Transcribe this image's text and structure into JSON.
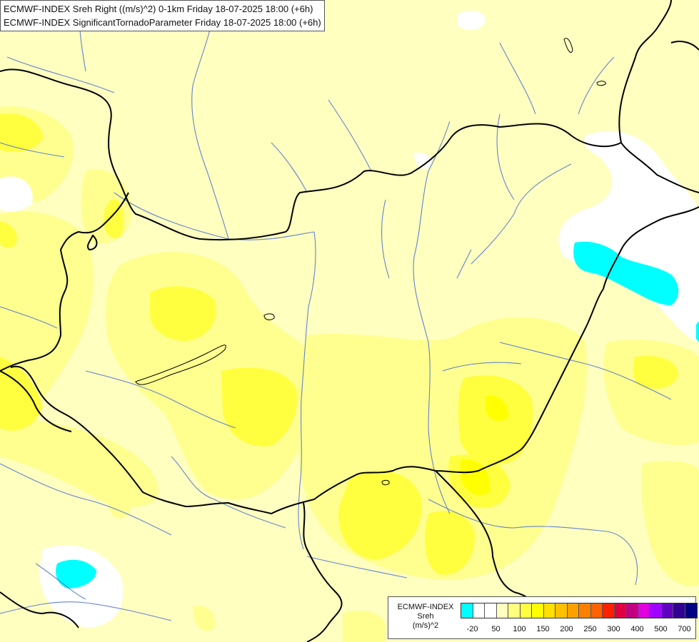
{
  "header": {
    "line1": "ECMWF-INDEX Sreh Right ((m/s)^2) 0-1km Friday 18-07-2025 18:00 (+6h)",
    "line2": "ECMWF-INDEX SignificantTornadoParameter Friday 18-07-2025 18:00 (+6h)"
  },
  "legend": {
    "title1": "ECMWF-INDEX",
    "title2": "Sreh",
    "unit": "(m/s)^2",
    "colors": [
      "#00ffff",
      "#ffffff",
      "#ffffff",
      "#ffffc0",
      "#ffff80",
      "#ffff40",
      "#ffff00",
      "#ffe000",
      "#ffc000",
      "#ffa000",
      "#ff8000",
      "#ff6000",
      "#ff2000",
      "#e00040",
      "#c00080",
      "#e000e0",
      "#a000ff",
      "#6000c0",
      "#300090",
      "#000080"
    ],
    "ticks": [
      {
        "label": "-20",
        "pos": 1
      },
      {
        "label": "50",
        "pos": 3
      },
      {
        "label": "100",
        "pos": 5
      },
      {
        "label": "150",
        "pos": 7
      },
      {
        "label": "200",
        "pos": 9
      },
      {
        "label": "250",
        "pos": 11
      },
      {
        "label": "300",
        "pos": 13
      },
      {
        "label": "400",
        "pos": 15
      },
      {
        "label": "500",
        "pos": 17
      },
      {
        "label": "700",
        "pos": 19
      }
    ]
  },
  "map_colors": {
    "background": "#ffffc0",
    "light_yellow": "#ffff90",
    "yellow": "#ffff40",
    "white": "#ffffff",
    "cyan": "#00ffff",
    "border": "#000000",
    "river": "#4a6ed0"
  }
}
